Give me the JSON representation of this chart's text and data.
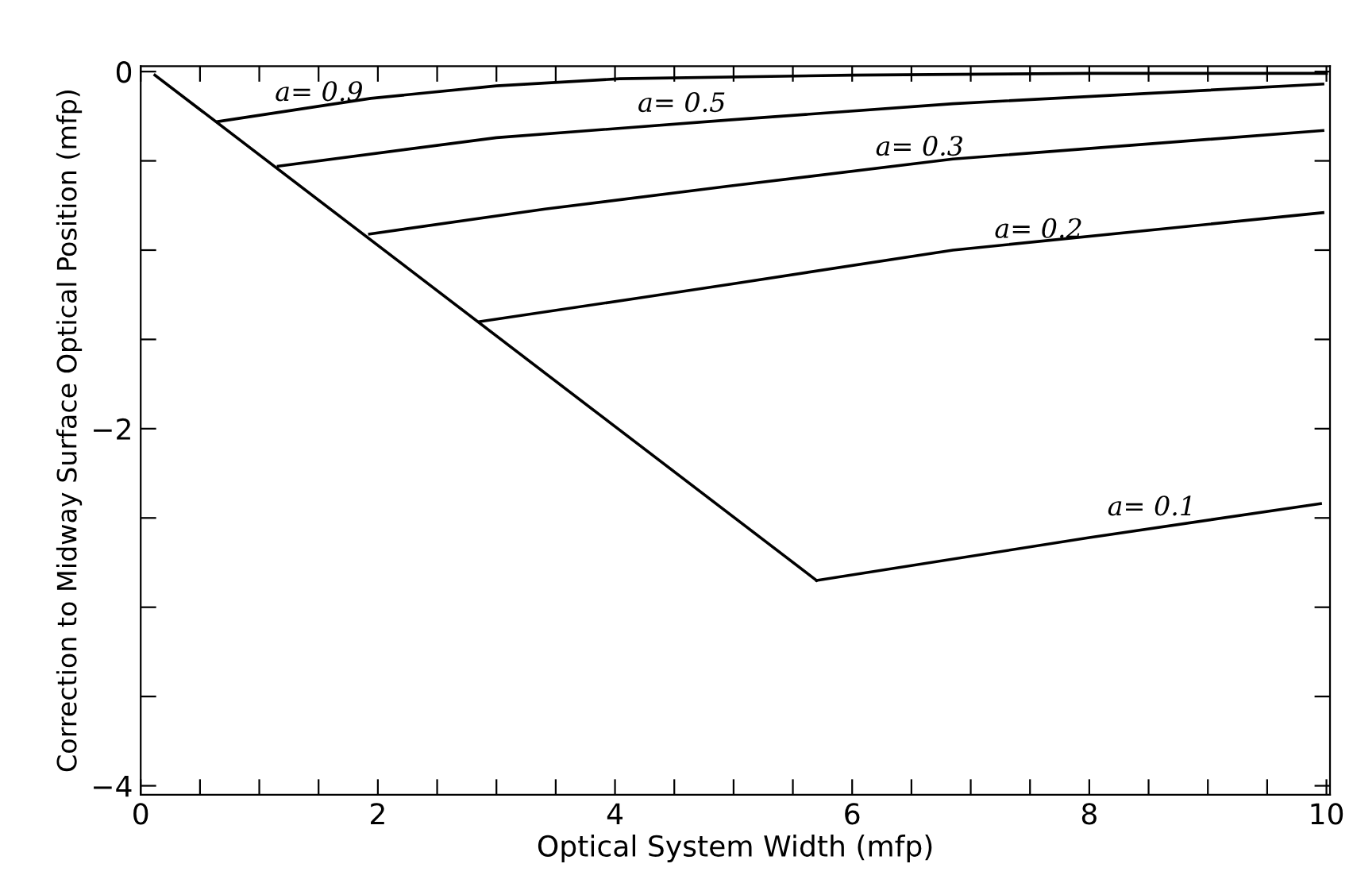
{
  "chart_data": {
    "type": "line",
    "xlabel": "Optical System Width (mfp)",
    "ylabel": "Correction to Midway Surface Optical Position (mfp)",
    "xlim": [
      0,
      10.03
    ],
    "ylim": [
      -4.05,
      0.03
    ],
    "xticks": [
      0,
      {
        "value": 0.5,
        "label": null
      },
      {
        "value": 1,
        "label": null
      },
      {
        "value": 1.5,
        "label": null
      },
      2,
      {
        "value": 2.5,
        "label": null
      },
      {
        "value": 3,
        "label": null
      },
      {
        "value": 3.5,
        "label": null
      },
      4,
      {
        "value": 4.5,
        "label": null
      },
      {
        "value": 5,
        "label": null
      },
      {
        "value": 5.5,
        "label": null
      },
      6,
      {
        "value": 6.5,
        "label": null
      },
      {
        "value": 7,
        "label": null
      },
      {
        "value": 7.5,
        "label": null
      },
      8,
      {
        "value": 8.5,
        "label": null
      },
      {
        "value": 9,
        "label": null
      },
      {
        "value": 9.5,
        "label": null
      },
      10
    ],
    "yticks": [
      {
        "value": -4,
        "label": "−4"
      },
      {
        "value": -3.5,
        "label": null
      },
      {
        "value": -3,
        "label": null
      },
      {
        "value": -2.5,
        "label": null
      },
      {
        "value": -2,
        "label": "−2"
      },
      {
        "value": -1.5,
        "label": null
      },
      {
        "value": -1,
        "label": null
      },
      {
        "value": -0.5,
        "label": null
      },
      0
    ],
    "grid": false,
    "marker": "none",
    "line_style": "solid",
    "series": [
      {
        "color": "#000000",
        "x": [
          0.12,
          5.7
        ],
        "values": [
          -0.02,
          -2.85
        ]
      },
      {
        "color": "#000000",
        "x": [
          0.65,
          1.94,
          3,
          4.04,
          6,
          8,
          10
        ],
        "values": [
          -0.28,
          -0.15,
          -0.08,
          -0.04,
          -0.02,
          -0.01,
          -0.01
        ]
      },
      {
        "color": "#000000",
        "x": [
          1.16,
          3,
          4.98,
          6.85,
          9.97
        ],
        "values": [
          -0.53,
          -0.37,
          -0.27,
          -0.18,
          -0.07
        ]
      },
      {
        "color": "#000000",
        "x": [
          1.93,
          3.41,
          4.98,
          6.85,
          9.97
        ],
        "values": [
          -0.91,
          -0.77,
          -0.64,
          -0.49,
          -0.33
        ]
      },
      {
        "color": "#000000",
        "x": [
          2.86,
          4.18,
          4.98,
          6.85,
          9.97
        ],
        "values": [
          -1.4,
          -1.27,
          -1.19,
          -1.0,
          -0.79
        ]
      },
      {
        "color": "#000000",
        "x": [
          5.7,
          8.0,
          9.95
        ],
        "values": [
          -2.85,
          -2.61,
          -2.42
        ]
      }
    ],
    "annotations": [
      "a= 0.9",
      "a= 0.5",
      "a= 0.3",
      "a= 0.2",
      "a= 0.1"
    ]
  }
}
